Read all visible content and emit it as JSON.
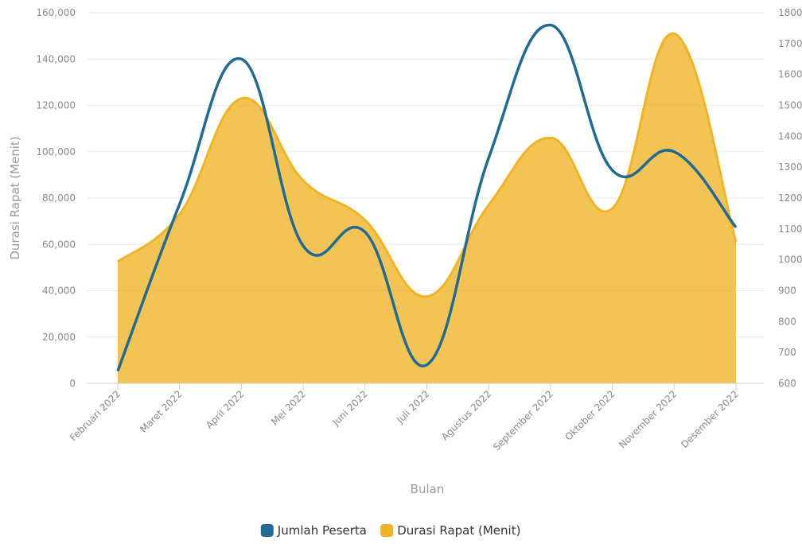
{
  "chart_data": {
    "type": "area",
    "categories": [
      "Februari 2022",
      "Maret 2022",
      "April 2022",
      "Mei 2022",
      "Juni 2022",
      "Juli 2022",
      "Agustus 2022",
      "September 2022",
      "Oktober 2022",
      "November 2022",
      "Desember 2022"
    ],
    "xlabel": "Bulan",
    "ylabel": "Durasi Rapat (Menit)",
    "ylim": [
      0,
      160000
    ],
    "y_ticks": [
      "0",
      "20,000",
      "40,000",
      "60,000",
      "80,000",
      "100,000",
      "120,000",
      "140,000",
      "160,000"
    ],
    "y2lim": [
      600,
      1800
    ],
    "y2_ticks": [
      "600",
      "700",
      "800",
      "900",
      "1000",
      "1100",
      "1200",
      "1300",
      "1400",
      "1500",
      "1600",
      "1700",
      "1800"
    ],
    "grid": true,
    "legend_position": "bottom",
    "series": [
      {
        "name": "Jumlah Peserta",
        "type": "line",
        "axis": "right",
        "color": "#1f6a96",
        "values": [
          640,
          1180,
          1650,
          1045,
          1090,
          660,
          1330,
          1760,
          1290,
          1350,
          1105
        ]
      },
      {
        "name": "Durasi Rapat (Menit)",
        "type": "area",
        "axis": "left",
        "color": "#f0b323",
        "values": [
          52500,
          73000,
          123000,
          87500,
          70500,
          37500,
          77000,
          106000,
          75500,
          151000,
          61000
        ]
      }
    ]
  }
}
